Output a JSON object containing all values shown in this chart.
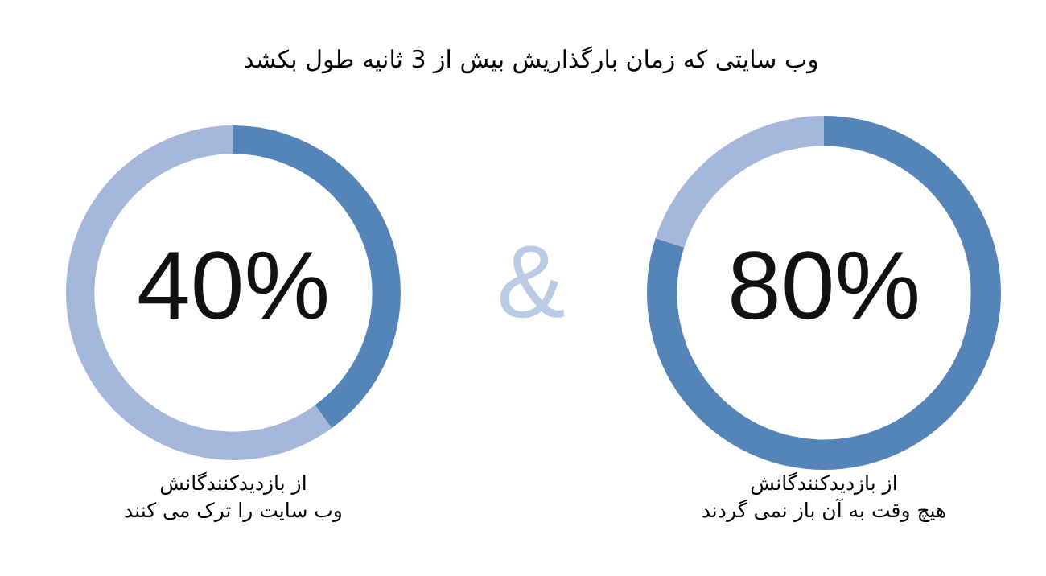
{
  "chart_data": [
    {
      "type": "donut",
      "title": "وب سایتی که زمان بارگذاریش بیش از 3 ثانیه طول بکشد",
      "categories": [
        null,
        null
      ],
      "values": [
        40,
        60
      ],
      "colors": [
        "#5585b8",
        "#a5b8db"
      ],
      "value_labels": [
        "40%",
        null
      ],
      "annotations": [
        "از بازدیدکنندگانش",
        "وب سایت را ترک می کنند",
        "&"
      ]
    },
    {
      "type": "donut",
      "categories": [
        null,
        null
      ],
      "values": [
        80,
        20
      ],
      "colors": [
        "#5585b8",
        "#a5b8db"
      ],
      "value_labels": [
        "80%",
        null
      ],
      "annotations": [
        "از بازدیدکنندگانش",
        "هیچ وقت به آن باز نمی گردند"
      ]
    }
  ]
}
